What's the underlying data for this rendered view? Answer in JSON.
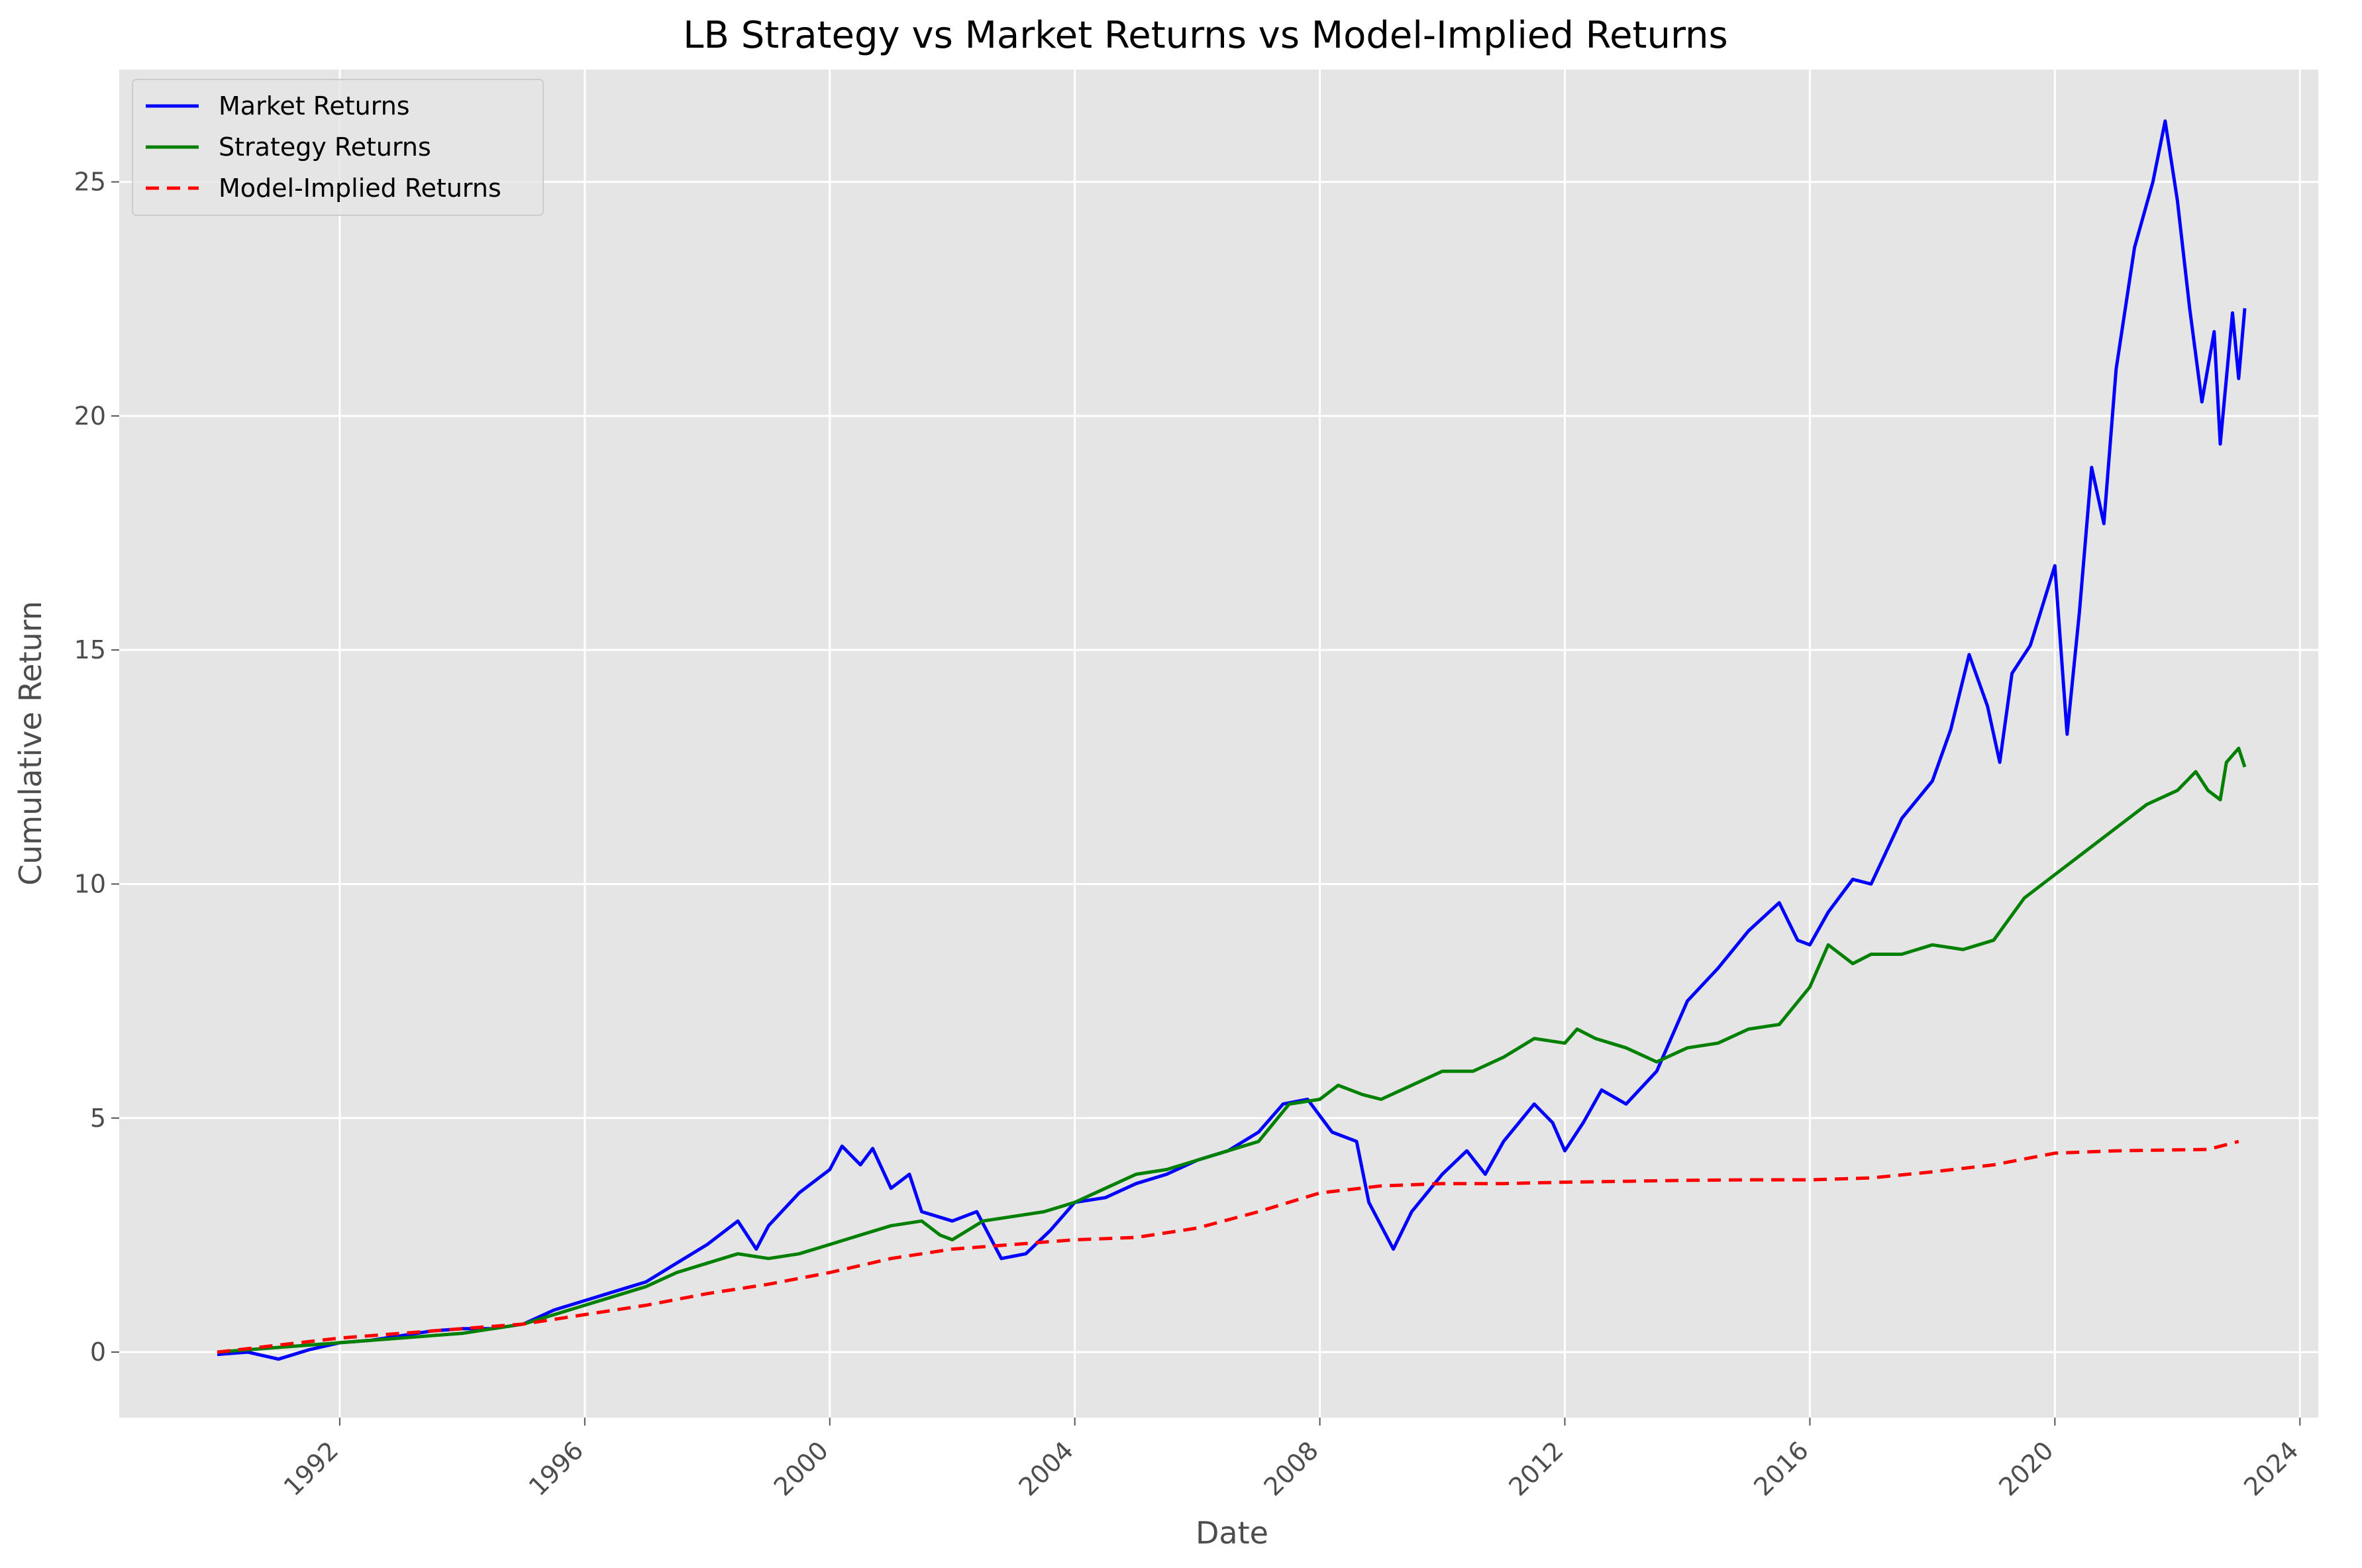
{
  "chart_data": {
    "type": "line",
    "title": "LB Strategy vs Market Returns vs Model-Implied Returns",
    "xlabel": "Date",
    "ylabel": "Cumulative Return",
    "x_ticks": [
      "1992",
      "1996",
      "2000",
      "2004",
      "2008",
      "2012",
      "2016",
      "2020",
      "2024"
    ],
    "y_ticks": [
      "0",
      "5",
      "10",
      "15",
      "20",
      "25"
    ],
    "xlim": [
      1988.4,
      2024.3
    ],
    "ylim": [
      -1.4,
      27.4
    ],
    "grid": true,
    "legend_position": "top-left",
    "series": [
      {
        "name": "Market Returns",
        "color": "#0000ff",
        "style": "solid",
        "points": [
          [
            1990.0,
            -0.05
          ],
          [
            1990.5,
            0.0
          ],
          [
            1991.0,
            -0.15
          ],
          [
            1991.5,
            0.05
          ],
          [
            1992.0,
            0.2
          ],
          [
            1992.5,
            0.25
          ],
          [
            1993.0,
            0.35
          ],
          [
            1993.5,
            0.45
          ],
          [
            1994.0,
            0.5
          ],
          [
            1994.5,
            0.5
          ],
          [
            1995.0,
            0.6
          ],
          [
            1995.5,
            0.9
          ],
          [
            1996.0,
            1.1
          ],
          [
            1996.5,
            1.3
          ],
          [
            1997.0,
            1.5
          ],
          [
            1997.5,
            1.9
          ],
          [
            1998.0,
            2.3
          ],
          [
            1998.5,
            2.8
          ],
          [
            1998.8,
            2.2
          ],
          [
            1999.0,
            2.7
          ],
          [
            1999.5,
            3.4
          ],
          [
            2000.0,
            3.9
          ],
          [
            2000.2,
            4.4
          ],
          [
            2000.5,
            4.0
          ],
          [
            2000.7,
            4.35
          ],
          [
            2001.0,
            3.5
          ],
          [
            2001.3,
            3.8
          ],
          [
            2001.5,
            3.0
          ],
          [
            2002.0,
            2.8
          ],
          [
            2002.4,
            3.0
          ],
          [
            2002.8,
            2.0
          ],
          [
            2003.2,
            2.1
          ],
          [
            2003.6,
            2.6
          ],
          [
            2004.0,
            3.2
          ],
          [
            2004.5,
            3.3
          ],
          [
            2005.0,
            3.6
          ],
          [
            2005.5,
            3.8
          ],
          [
            2006.0,
            4.1
          ],
          [
            2006.5,
            4.3
          ],
          [
            2007.0,
            4.7
          ],
          [
            2007.4,
            5.3
          ],
          [
            2007.8,
            5.4
          ],
          [
            2008.2,
            4.7
          ],
          [
            2008.6,
            4.5
          ],
          [
            2008.8,
            3.2
          ],
          [
            2009.2,
            2.2
          ],
          [
            2009.5,
            3.0
          ],
          [
            2010.0,
            3.8
          ],
          [
            2010.4,
            4.3
          ],
          [
            2010.7,
            3.8
          ],
          [
            2011.0,
            4.5
          ],
          [
            2011.5,
            5.3
          ],
          [
            2011.8,
            4.9
          ],
          [
            2012.0,
            4.3
          ],
          [
            2012.3,
            4.9
          ],
          [
            2012.6,
            5.6
          ],
          [
            2013.0,
            5.3
          ],
          [
            2013.5,
            6.0
          ],
          [
            2014.0,
            7.5
          ],
          [
            2014.5,
            8.2
          ],
          [
            2015.0,
            9.0
          ],
          [
            2015.5,
            9.6
          ],
          [
            2015.8,
            8.8
          ],
          [
            2016.0,
            8.7
          ],
          [
            2016.3,
            9.4
          ],
          [
            2016.7,
            10.1
          ],
          [
            2017.0,
            10.0
          ],
          [
            2017.5,
            11.4
          ],
          [
            2018.0,
            12.2
          ],
          [
            2018.3,
            13.3
          ],
          [
            2018.6,
            14.9
          ],
          [
            2018.9,
            13.8
          ],
          [
            2019.1,
            12.6
          ],
          [
            2019.3,
            14.5
          ],
          [
            2019.6,
            15.1
          ],
          [
            2020.0,
            16.8
          ],
          [
            2020.2,
            13.2
          ],
          [
            2020.4,
            15.8
          ],
          [
            2020.6,
            18.9
          ],
          [
            2020.8,
            17.7
          ],
          [
            2021.0,
            21.0
          ],
          [
            2021.3,
            23.6
          ],
          [
            2021.6,
            25.0
          ],
          [
            2021.8,
            26.3
          ],
          [
            2022.0,
            24.6
          ],
          [
            2022.2,
            22.3
          ],
          [
            2022.4,
            20.3
          ],
          [
            2022.6,
            21.8
          ],
          [
            2022.7,
            19.4
          ],
          [
            2022.9,
            22.2
          ],
          [
            2023.0,
            20.8
          ],
          [
            2023.1,
            22.3
          ]
        ]
      },
      {
        "name": "Strategy Returns",
        "color": "#008000",
        "style": "solid",
        "points": [
          [
            1990.0,
            0.0
          ],
          [
            1990.5,
            0.05
          ],
          [
            1991.0,
            0.1
          ],
          [
            1991.5,
            0.15
          ],
          [
            1992.0,
            0.2
          ],
          [
            1992.5,
            0.25
          ],
          [
            1993.0,
            0.3
          ],
          [
            1993.5,
            0.35
          ],
          [
            1994.0,
            0.4
          ],
          [
            1994.5,
            0.5
          ],
          [
            1995.0,
            0.6
          ],
          [
            1995.5,
            0.8
          ],
          [
            1996.0,
            1.0
          ],
          [
            1996.5,
            1.2
          ],
          [
            1997.0,
            1.4
          ],
          [
            1997.5,
            1.7
          ],
          [
            1998.0,
            1.9
          ],
          [
            1998.5,
            2.1
          ],
          [
            1999.0,
            2.0
          ],
          [
            1999.5,
            2.1
          ],
          [
            2000.0,
            2.3
          ],
          [
            2000.5,
            2.5
          ],
          [
            2001.0,
            2.7
          ],
          [
            2001.5,
            2.8
          ],
          [
            2001.8,
            2.5
          ],
          [
            2002.0,
            2.4
          ],
          [
            2002.5,
            2.8
          ],
          [
            2003.0,
            2.9
          ],
          [
            2003.5,
            3.0
          ],
          [
            2004.0,
            3.2
          ],
          [
            2004.5,
            3.5
          ],
          [
            2005.0,
            3.8
          ],
          [
            2005.5,
            3.9
          ],
          [
            2006.0,
            4.1
          ],
          [
            2006.5,
            4.3
          ],
          [
            2007.0,
            4.5
          ],
          [
            2007.5,
            5.3
          ],
          [
            2008.0,
            5.4
          ],
          [
            2008.3,
            5.7
          ],
          [
            2008.7,
            5.5
          ],
          [
            2009.0,
            5.4
          ],
          [
            2009.5,
            5.7
          ],
          [
            2010.0,
            6.0
          ],
          [
            2010.5,
            6.0
          ],
          [
            2011.0,
            6.3
          ],
          [
            2011.5,
            6.7
          ],
          [
            2012.0,
            6.6
          ],
          [
            2012.2,
            6.9
          ],
          [
            2012.5,
            6.7
          ],
          [
            2013.0,
            6.5
          ],
          [
            2013.5,
            6.2
          ],
          [
            2014.0,
            6.5
          ],
          [
            2014.5,
            6.6
          ],
          [
            2015.0,
            6.9
          ],
          [
            2015.5,
            7.0
          ],
          [
            2016.0,
            7.8
          ],
          [
            2016.3,
            8.7
          ],
          [
            2016.7,
            8.3
          ],
          [
            2017.0,
            8.5
          ],
          [
            2017.5,
            8.5
          ],
          [
            2018.0,
            8.7
          ],
          [
            2018.5,
            8.6
          ],
          [
            2019.0,
            8.8
          ],
          [
            2019.5,
            9.7
          ],
          [
            2020.0,
            10.2
          ],
          [
            2020.5,
            10.7
          ],
          [
            2021.0,
            11.2
          ],
          [
            2021.5,
            11.7
          ],
          [
            2022.0,
            12.0
          ],
          [
            2022.3,
            12.4
          ],
          [
            2022.5,
            12.0
          ],
          [
            2022.7,
            11.8
          ],
          [
            2022.8,
            12.6
          ],
          [
            2023.0,
            12.9
          ],
          [
            2023.1,
            12.5
          ]
        ]
      },
      {
        "name": "Model-Implied Returns",
        "color": "#ff0000",
        "style": "dashed",
        "points": [
          [
            1990.0,
            0.0
          ],
          [
            1991.0,
            0.15
          ],
          [
            1992.0,
            0.3
          ],
          [
            1993.0,
            0.4
          ],
          [
            1994.0,
            0.5
          ],
          [
            1995.0,
            0.6
          ],
          [
            1996.0,
            0.8
          ],
          [
            1997.0,
            1.0
          ],
          [
            1998.0,
            1.25
          ],
          [
            1999.0,
            1.45
          ],
          [
            2000.0,
            1.7
          ],
          [
            2001.0,
            2.0
          ],
          [
            2002.0,
            2.2
          ],
          [
            2003.0,
            2.3
          ],
          [
            2004.0,
            2.4
          ],
          [
            2005.0,
            2.45
          ],
          [
            2006.0,
            2.65
          ],
          [
            2007.0,
            3.0
          ],
          [
            2008.0,
            3.4
          ],
          [
            2009.0,
            3.55
          ],
          [
            2010.0,
            3.6
          ],
          [
            2011.0,
            3.6
          ],
          [
            2012.0,
            3.63
          ],
          [
            2013.0,
            3.65
          ],
          [
            2014.0,
            3.67
          ],
          [
            2015.0,
            3.68
          ],
          [
            2016.0,
            3.68
          ],
          [
            2017.0,
            3.72
          ],
          [
            2018.0,
            3.85
          ],
          [
            2019.0,
            4.0
          ],
          [
            2020.0,
            4.25
          ],
          [
            2021.0,
            4.3
          ],
          [
            2022.0,
            4.32
          ],
          [
            2022.5,
            4.33
          ],
          [
            2023.0,
            4.5
          ]
        ]
      }
    ]
  }
}
